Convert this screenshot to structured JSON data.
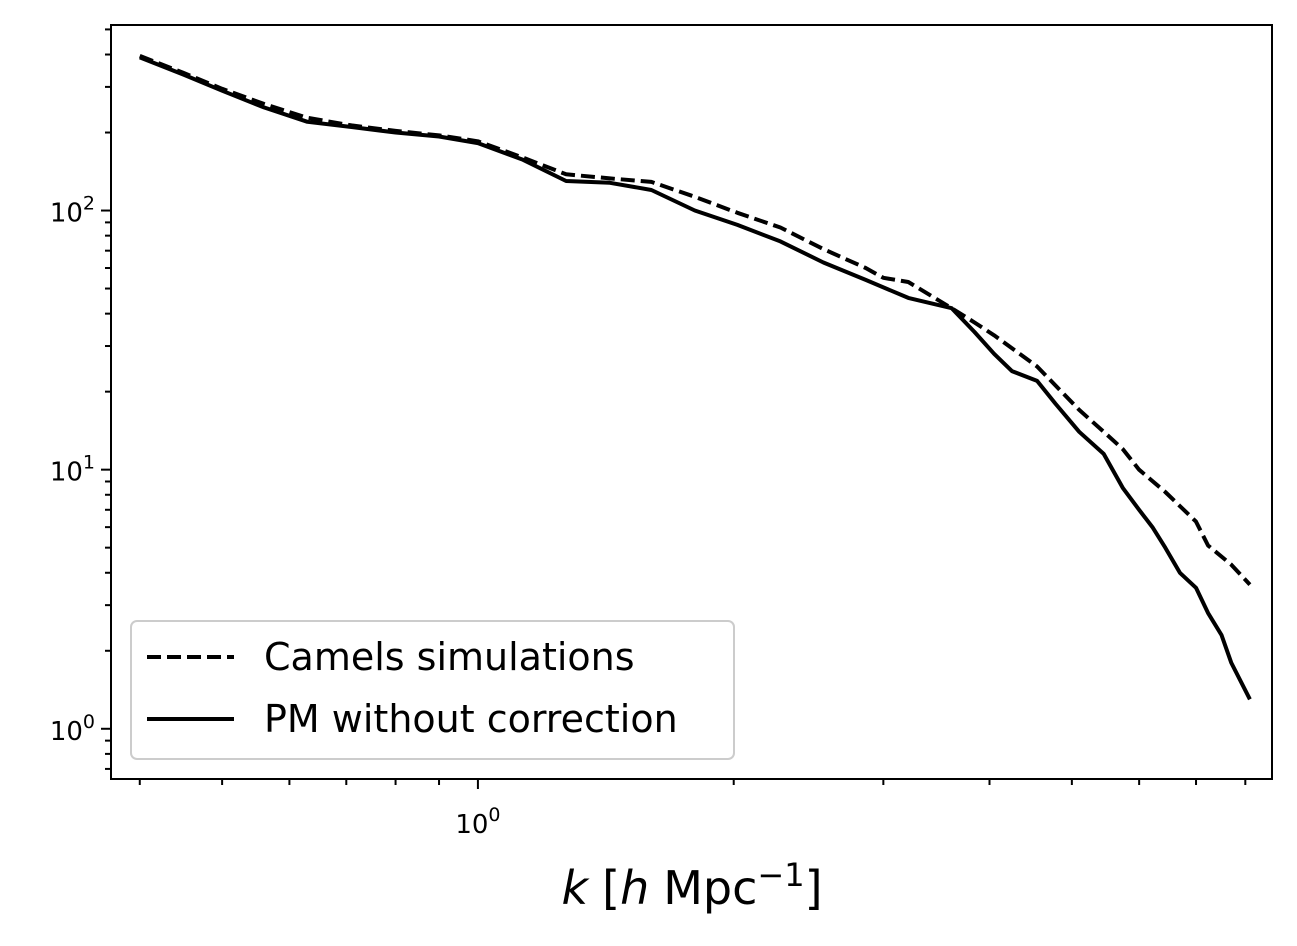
{
  "chart_data": {
    "type": "line",
    "xscale": "log",
    "yscale": "log",
    "xlim": [
      0.37,
      8.6
    ],
    "ylim": [
      0.64,
      520
    ],
    "grid": false,
    "xlabel": {
      "italic_k": "k",
      "bracket_open": "[",
      "italic_h": "h",
      "unit": "Mpc",
      "exponent": "−1",
      "bracket_close": "]"
    },
    "ylabel": "",
    "x_ticks": [
      {
        "value": 1,
        "base": "10",
        "exp": "0"
      }
    ],
    "y_ticks": [
      {
        "value": 1,
        "base": "10",
        "exp": "0"
      },
      {
        "value": 10,
        "base": "10",
        "exp": "1"
      },
      {
        "value": 100,
        "base": "10",
        "exp": "2"
      }
    ],
    "legend": {
      "placement": "lower-left"
    },
    "series": [
      {
        "name": "Camels simulations",
        "style": "dashed",
        "color": "#000000",
        "x": [
          0.4,
          0.45,
          0.5,
          0.56,
          0.63,
          0.71,
          0.8,
          0.9,
          1.0,
          1.13,
          1.27,
          1.43,
          1.6,
          1.8,
          2.02,
          2.27,
          2.55,
          2.86,
          3.0,
          3.21,
          3.61,
          3.84,
          4.05,
          4.55,
          5.1,
          5.45,
          5.74,
          6.0,
          6.44,
          7.0,
          7.23,
          7.7,
          8.1
        ],
        "y": [
          395,
          340,
          295,
          258,
          228,
          213,
          203,
          195,
          185,
          160,
          138,
          133,
          129,
          113,
          98,
          86,
          71,
          60,
          55,
          53,
          42,
          37,
          33,
          25,
          17,
          14,
          12,
          10,
          8.2,
          6.3,
          5.1,
          4.3,
          3.6
        ]
      },
      {
        "name": "PM without correction",
        "style": "solid",
        "color": "#000000",
        "x": [
          0.4,
          0.45,
          0.5,
          0.56,
          0.63,
          0.71,
          0.8,
          0.9,
          1.0,
          1.13,
          1.27,
          1.43,
          1.6,
          1.8,
          2.02,
          2.27,
          2.55,
          2.86,
          3.21,
          3.61,
          3.84,
          4.05,
          4.25,
          4.55,
          4.78,
          5.1,
          5.45,
          5.74,
          6.0,
          6.22,
          6.44,
          6.7,
          7.0,
          7.23,
          7.5,
          7.7,
          8.1
        ],
        "y": [
          390,
          335,
          290,
          250,
          220,
          210,
          200,
          193,
          182,
          157,
          130,
          128,
          120,
          100,
          88,
          76,
          63,
          54,
          46,
          42,
          34,
          28,
          24,
          22,
          18,
          14,
          11.5,
          8.5,
          7,
          6,
          5,
          4,
          3.5,
          2.8,
          2.3,
          1.8,
          1.3
        ]
      }
    ]
  }
}
